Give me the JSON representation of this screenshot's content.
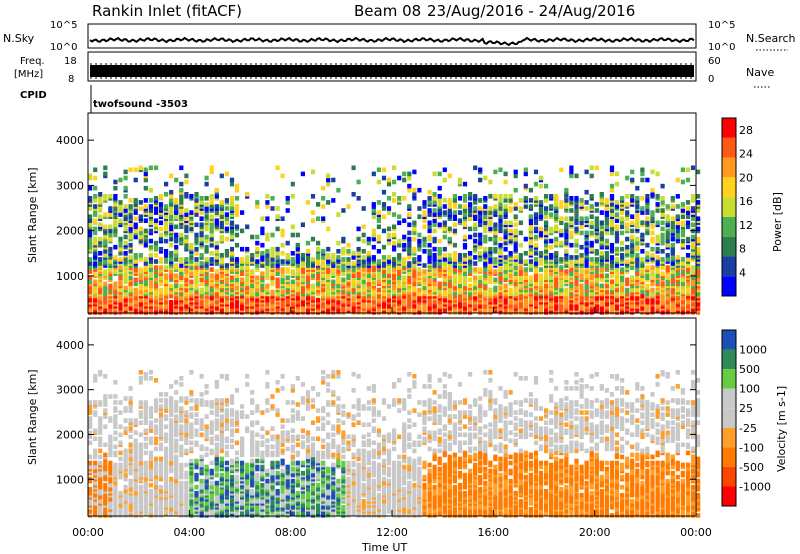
{
  "header": {
    "site": "Rankin Inlet (fitACF)",
    "beam": "Beam 08",
    "date_range": "23/Aug/2016 - 24/Aug/2016"
  },
  "noise_panel": {
    "left_label": "N.Sky",
    "left_ticks": [
      "10^5",
      "10^0"
    ],
    "right_label": "N.Search",
    "right_ticks": [
      "10^5",
      "10^0"
    ]
  },
  "freq_panel": {
    "left_label_line1": "Freq.",
    "left_label_line2": "[MHz]",
    "left_ticks": [
      "18",
      "8"
    ],
    "right_label": "Nave",
    "right_ticks": [
      "60",
      "0"
    ]
  },
  "cpid_panel": {
    "label": "CPID",
    "value": "twofsound -3503"
  },
  "colors": {
    "power_scale": [
      "#0000ff",
      "#1a3fa0",
      "#2e7d4f",
      "#4caf50",
      "#c8dc32",
      "#ffd21e",
      "#ff9a1e",
      "#ff5a14",
      "#ff0000"
    ],
    "velocity_scale": [
      "#ff0000",
      "#ff4400",
      "#ff7a00",
      "#ff9f2a",
      "#c8c8c8",
      "#c8c8c8",
      "#66cc44",
      "#2e8b57",
      "#1e4fb4"
    ]
  },
  "chart_data": [
    {
      "type": "heatmap",
      "name": "power",
      "ylabel": "Slant Range [km]",
      "ylim": [
        180,
        4600
      ],
      "yticks": [
        1000,
        2000,
        3000,
        4000
      ],
      "xlim": [
        0,
        24
      ],
      "xticks": [
        0,
        4,
        8,
        12,
        16,
        20,
        24
      ],
      "colorbar_label": "Power [dB]",
      "colorbar_ticks": [
        4,
        8,
        12,
        16,
        20,
        24,
        28
      ],
      "colorbar_range": [
        0,
        30
      ]
    },
    {
      "type": "heatmap",
      "name": "velocity",
      "ylabel": "Slant Range [km]",
      "ylim": [
        180,
        4600
      ],
      "yticks": [
        1000,
        2000,
        3000,
        4000
      ],
      "xlim": [
        0,
        24
      ],
      "xticks": [
        0,
        4,
        8,
        12,
        16,
        20,
        24
      ],
      "xtick_labels": [
        "00:00",
        "04:00",
        "08:00",
        "12:00",
        "16:00",
        "20:00",
        "00:00"
      ],
      "xlabel": "Time UT",
      "colorbar_label": "Velocity [m s-1]",
      "colorbar_ticks": [
        "1000",
        "500",
        "100",
        "25",
        "-25",
        "-100",
        "-500",
        "-1000"
      ]
    }
  ]
}
